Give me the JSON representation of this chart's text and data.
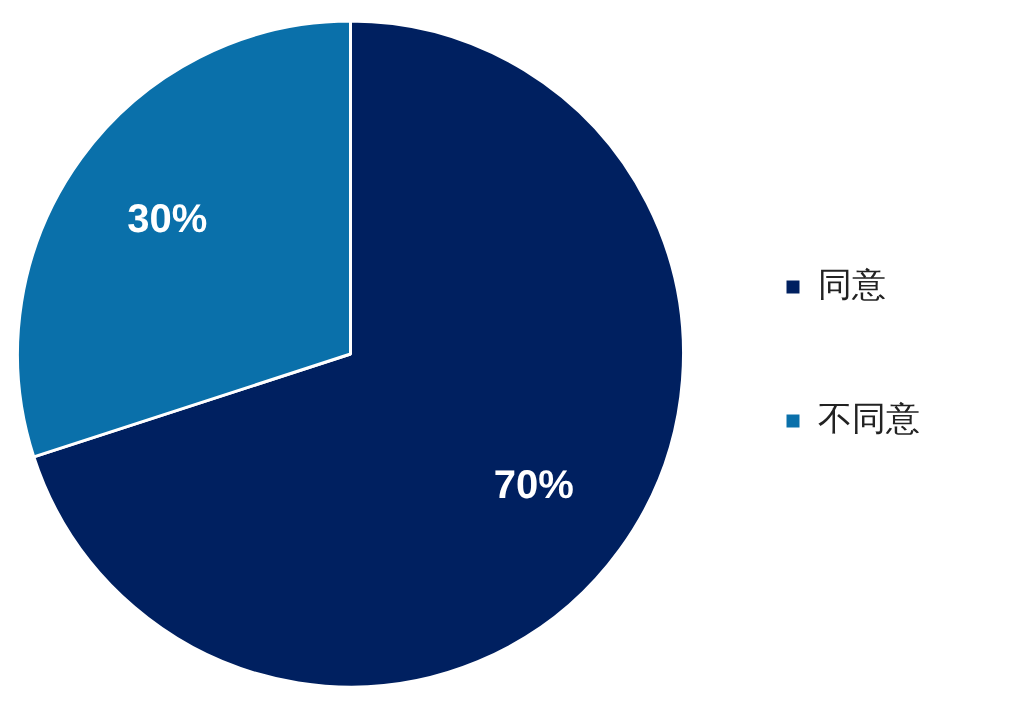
{
  "chart_data": {
    "type": "pie",
    "categories": [
      "同意",
      "不同意"
    ],
    "values": [
      70,
      30
    ],
    "colors": [
      "#002060",
      "#0a70aa"
    ],
    "value_labels": [
      "70%",
      "30%"
    ],
    "legend": "right"
  }
}
